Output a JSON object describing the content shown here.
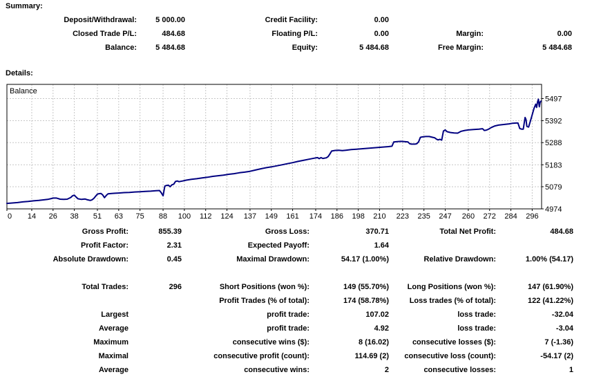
{
  "summary": {
    "title": "Summary:",
    "rows": [
      [
        "Deposit/Withdrawal:",
        "5 000.00",
        "Credit Facility:",
        "0.00",
        "",
        ""
      ],
      [
        "Closed Trade P/L:",
        "484.68",
        "Floating P/L:",
        "0.00",
        "Margin:",
        "0.00"
      ],
      [
        "Balance:",
        "5 484.68",
        "Equity:",
        "5 484.68",
        "Free Margin:",
        "5 484.68"
      ]
    ]
  },
  "details": {
    "title": "Details:",
    "stats_rows": [
      [
        "Gross Profit:",
        "855.39",
        "Gross Loss:",
        "370.71",
        "Total Net Profit:",
        "484.68"
      ],
      [
        "Profit Factor:",
        "2.31",
        "Expected Payoff:",
        "1.64",
        "",
        ""
      ],
      [
        "Absolute Drawdown:",
        "0.45",
        "Maximal Drawdown:",
        "54.17 (1.00%)",
        "Relative Drawdown:",
        "1.00% (54.17)"
      ]
    ],
    "trade_rows": [
      [
        "Total Trades:",
        "296",
        "Short Positions (won %):",
        "149 (55.70%)",
        "Long Positions (won %):",
        "147 (61.90%)"
      ],
      [
        "",
        "",
        "Profit Trades (% of total):",
        "174 (58.78%)",
        "Loss trades (% of total):",
        "122 (41.22%)"
      ],
      [
        "Largest",
        "",
        "profit trade:",
        "107.02",
        "loss trade:",
        "-32.04"
      ],
      [
        "Average",
        "",
        "profit trade:",
        "4.92",
        "loss trade:",
        "-3.04"
      ],
      [
        "Maximum",
        "",
        "consecutive wins ($):",
        "8 (16.02)",
        "consecutive losses ($):",
        "7 (-1.36)"
      ],
      [
        "Maximal",
        "",
        "consecutive profit (count):",
        "114.69 (2)",
        "consecutive loss (count):",
        "-54.17 (2)"
      ],
      [
        "Average",
        "",
        "consecutive wins:",
        "2",
        "consecutive losses:",
        "1"
      ]
    ]
  },
  "chart_data": {
    "type": "line",
    "title": "Balance",
    "legend_position": "top-left",
    "grid": true,
    "line_color": "#000080",
    "grid_color": "#c6c6c6",
    "xlim": [
      0,
      301.3
    ],
    "ylim": [
      4974,
      5497
    ],
    "x_ticks": [
      0,
      14,
      26,
      38,
      51,
      63,
      75,
      88,
      100,
      112,
      124,
      137,
      149,
      161,
      174,
      186,
      198,
      210,
      223,
      235,
      247,
      260,
      272,
      284,
      296
    ],
    "y_ticks": [
      5497,
      5392,
      5288,
      5183,
      5079,
      4974
    ],
    "series": [
      {
        "name": "Balance",
        "points": [
          [
            0,
            5000
          ],
          [
            3,
            5002
          ],
          [
            6,
            5004
          ],
          [
            9,
            5007
          ],
          [
            12,
            5009
          ],
          [
            15,
            5012
          ],
          [
            18,
            5014
          ],
          [
            21,
            5017
          ],
          [
            23,
            5019
          ],
          [
            25,
            5023
          ],
          [
            26,
            5025
          ],
          [
            28,
            5025
          ],
          [
            30,
            5020
          ],
          [
            32,
            5019
          ],
          [
            34,
            5020
          ],
          [
            36,
            5028
          ],
          [
            37,
            5036
          ],
          [
            38,
            5039
          ],
          [
            39,
            5030
          ],
          [
            40,
            5022
          ],
          [
            42,
            5019
          ],
          [
            44,
            5021
          ],
          [
            45,
            5018
          ],
          [
            47,
            5014
          ],
          [
            48,
            5017
          ],
          [
            49,
            5024
          ],
          [
            50,
            5034
          ],
          [
            51,
            5044
          ],
          [
            52,
            5046
          ],
          [
            53,
            5047
          ],
          [
            54,
            5040
          ],
          [
            55,
            5027
          ],
          [
            56,
            5038
          ],
          [
            57,
            5045
          ],
          [
            59,
            5047
          ],
          [
            61,
            5048
          ],
          [
            63,
            5049
          ],
          [
            66,
            5051
          ],
          [
            69,
            5052
          ],
          [
            72,
            5054
          ],
          [
            75,
            5055
          ],
          [
            78,
            5057
          ],
          [
            81,
            5058
          ],
          [
            84,
            5060
          ],
          [
            86,
            5061
          ],
          [
            87,
            5050
          ],
          [
            88,
            5036
          ],
          [
            89,
            5082
          ],
          [
            90,
            5085
          ],
          [
            91,
            5086
          ],
          [
            92,
            5079
          ],
          [
            93,
            5088
          ],
          [
            94,
            5091
          ],
          [
            95,
            5104
          ],
          [
            96,
            5106
          ],
          [
            97,
            5103
          ],
          [
            99,
            5106
          ],
          [
            101,
            5110
          ],
          [
            104,
            5114
          ],
          [
            107,
            5117
          ],
          [
            110,
            5121
          ],
          [
            113,
            5124
          ],
          [
            116,
            5128
          ],
          [
            119,
            5131
          ],
          [
            122,
            5134
          ],
          [
            125,
            5138
          ],
          [
            128,
            5141
          ],
          [
            131,
            5145
          ],
          [
            134,
            5148
          ],
          [
            137,
            5152
          ],
          [
            140,
            5158
          ],
          [
            143,
            5164
          ],
          [
            146,
            5169
          ],
          [
            149,
            5173
          ],
          [
            152,
            5178
          ],
          [
            155,
            5183
          ],
          [
            158,
            5188
          ],
          [
            161,
            5193
          ],
          [
            164,
            5199
          ],
          [
            167,
            5204
          ],
          [
            170,
            5209
          ],
          [
            173,
            5214
          ],
          [
            175,
            5217
          ],
          [
            176,
            5212
          ],
          [
            177,
            5217
          ],
          [
            178,
            5213
          ],
          [
            180,
            5216
          ],
          [
            181,
            5222
          ],
          [
            182,
            5234
          ],
          [
            183,
            5248
          ],
          [
            185,
            5251
          ],
          [
            187,
            5252
          ],
          [
            189,
            5250
          ],
          [
            191,
            5252
          ],
          [
            194,
            5255
          ],
          [
            197,
            5257
          ],
          [
            200,
            5259
          ],
          [
            203,
            5261
          ],
          [
            206,
            5263
          ],
          [
            209,
            5265
          ],
          [
            212,
            5267
          ],
          [
            215,
            5269
          ],
          [
            217,
            5271
          ],
          [
            218,
            5291
          ],
          [
            220,
            5293
          ],
          [
            222,
            5294
          ],
          [
            224,
            5293
          ],
          [
            226,
            5291
          ],
          [
            227,
            5283
          ],
          [
            228,
            5281
          ],
          [
            230,
            5281
          ],
          [
            231,
            5283
          ],
          [
            232,
            5292
          ],
          [
            233,
            5313
          ],
          [
            234,
            5315
          ],
          [
            236,
            5317
          ],
          [
            238,
            5317
          ],
          [
            240,
            5313
          ],
          [
            241,
            5311
          ],
          [
            242,
            5305
          ],
          [
            243,
            5301
          ],
          [
            244,
            5304
          ],
          [
            245,
            5300
          ],
          [
            246,
            5343
          ],
          [
            247,
            5348
          ],
          [
            248,
            5340
          ],
          [
            250,
            5336
          ],
          [
            252,
            5334
          ],
          [
            254,
            5333
          ],
          [
            256,
            5342
          ],
          [
            258,
            5346
          ],
          [
            260,
            5348
          ],
          [
            263,
            5350
          ],
          [
            266,
            5352
          ],
          [
            268,
            5354
          ],
          [
            269,
            5346
          ],
          [
            270,
            5347
          ],
          [
            271,
            5350
          ],
          [
            273,
            5360
          ],
          [
            275,
            5367
          ],
          [
            277,
            5371
          ],
          [
            280,
            5374
          ],
          [
            283,
            5377
          ],
          [
            285,
            5380
          ],
          [
            287,
            5381
          ],
          [
            288,
            5381
          ],
          [
            289,
            5355
          ],
          [
            290,
            5352
          ],
          [
            291,
            5352
          ],
          [
            292,
            5407
          ],
          [
            292.5,
            5398
          ],
          [
            293,
            5365
          ],
          [
            294,
            5362
          ],
          [
            295,
            5390
          ],
          [
            296,
            5420
          ],
          [
            297,
            5450
          ],
          [
            298,
            5470
          ],
          [
            298.5,
            5455
          ],
          [
            299,
            5480
          ],
          [
            299.5,
            5494
          ],
          [
            300,
            5458
          ],
          [
            300.5,
            5480
          ],
          [
            301,
            5485
          ]
        ]
      }
    ]
  }
}
